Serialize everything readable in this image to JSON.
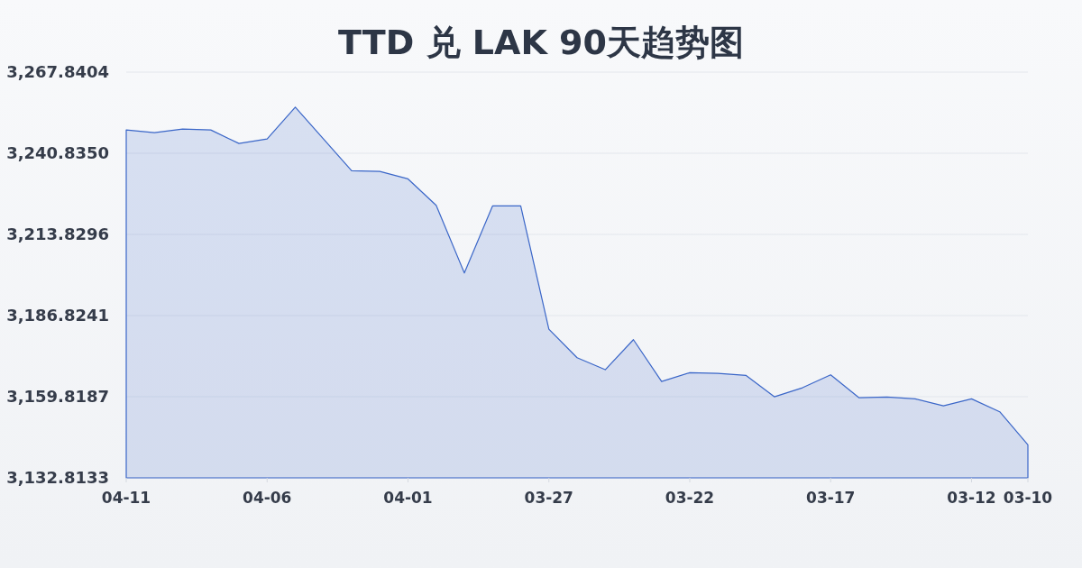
{
  "chart_data": {
    "type": "area",
    "title": "TTD 兑 LAK 90天趋势图",
    "x": [
      "--04-11",
      "--04-10",
      "--04-09",
      "--04-08",
      "--04-07",
      "--04-06",
      "--04-05",
      "--04-04",
      "--04-03",
      "--04-02",
      "--04-01",
      "--03-31",
      "--03-30",
      "--03-29",
      "--03-28",
      "--03-27",
      "--03-26",
      "--03-25",
      "--03-24",
      "--03-23",
      "--03-22",
      "--03-21",
      "--03-20",
      "--03-19",
      "--03-18",
      "--03-17",
      "--03-16",
      "--03-15",
      "--03-14",
      "--03-13",
      "--03-12",
      "--03-11",
      "--03-10"
    ],
    "series": [
      {
        "color": "#3a66c8",
        "values": [
          3248.6,
          3247.7,
          3248.9,
          3248.6,
          3244.1,
          3245.6,
          3256.2,
          3245.6,
          3235.0,
          3234.8,
          3232.3,
          3223.5,
          3201.0,
          3223.3,
          3223.3,
          3182.3,
          3172.8,
          3168.8,
          3178.8,
          3164.9,
          3167.8,
          3167.6,
          3166.9,
          3159.8,
          3162.8,
          3167.1,
          3159.5,
          3159.7,
          3159.1,
          3156.8,
          3159.1,
          3154.8,
          3143.8
        ]
      }
    ],
    "xlim": [
      "--04-11",
      "--03-10"
    ],
    "xticks": [
      {
        "value": "--04-11",
        "label": "04-11"
      },
      {
        "value": "--04-06",
        "label": "04-06"
      },
      {
        "value": "--04-01",
        "label": "04-01"
      },
      {
        "value": "--03-27",
        "label": "03-27"
      },
      {
        "value": "--03-22",
        "label": "03-22"
      },
      {
        "value": "--03-17",
        "label": "03-17"
      },
      {
        "value": "--03-12",
        "label": "03-12"
      },
      {
        "value": "--03-10",
        "label": "03-10"
      }
    ],
    "ylim": [
      3132.8133,
      3267.8404
    ],
    "yticks": [
      {
        "value": 3132.8133,
        "label": "3,132.8133"
      },
      {
        "value": 3159.8187,
        "label": "3,159.8187"
      },
      {
        "value": 3186.8241,
        "label": "3,186.8241"
      },
      {
        "value": 3213.8296,
        "label": "3,213.8296"
      },
      {
        "value": 3240.835,
        "label": "3,240.8350"
      },
      {
        "value": 3267.8404,
        "label": "3,267.8404"
      }
    ],
    "grid": "y"
  }
}
